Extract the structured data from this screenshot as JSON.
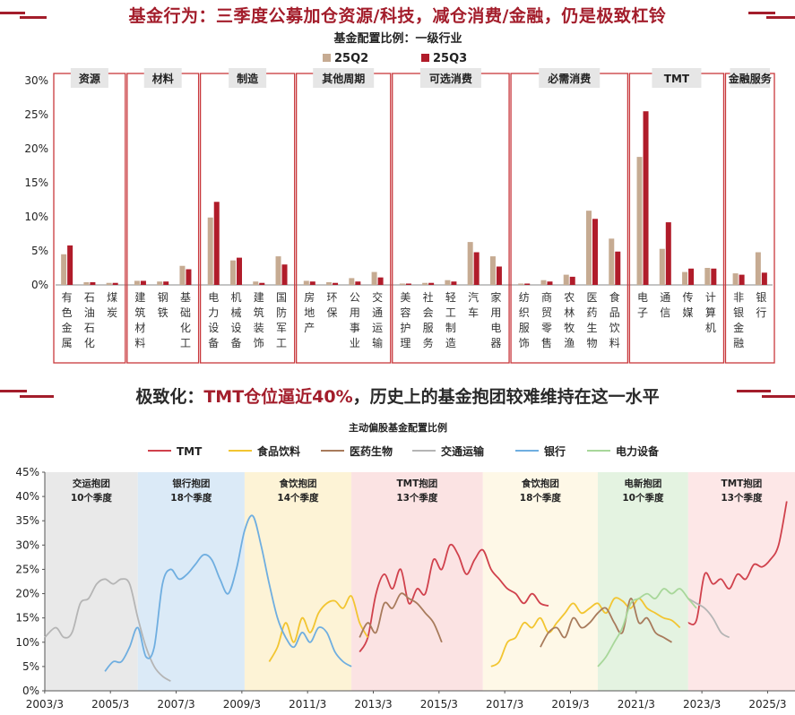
{
  "banner_top": "基金行为：三季度公募加仓资源/科技，减仓消费/金融，仍是极致杠铃",
  "banner_bottom": {
    "prefix": "极致化：",
    "highlight": "TMT仓位逼近40%",
    "suffix": "，历史上的基金抱团较难维持在这一水平"
  },
  "colors": {
    "brand": "#a31d2b",
    "q2": "#c6ab92",
    "q3": "#b01c2a",
    "tmt": "#d0414c",
    "food": "#f2c531",
    "pharma": "#a87b5c",
    "transport": "#b5b5b5",
    "bank": "#6faee0",
    "power": "#a8d79a"
  },
  "chart_data": [
    {
      "type": "bar",
      "title": "基金配置比例：一级行业",
      "series": [
        {
          "name": "25Q2",
          "values": [
            4.5,
            0.4,
            0.3,
            0.6,
            0.5,
            2.8,
            9.9,
            3.6,
            0.5,
            4.2,
            0.6,
            0.4,
            1.0,
            1.9,
            0.2,
            0.3,
            0.7,
            6.3,
            4.2,
            0.2,
            0.7,
            1.5,
            10.9,
            6.8,
            18.8,
            5.3,
            1.9,
            2.5,
            1.7,
            4.8
          ]
        },
        {
          "name": "25Q3",
          "values": [
            5.8,
            0.4,
            0.3,
            0.6,
            0.5,
            2.3,
            12.2,
            4.0,
            0.3,
            3.0,
            0.5,
            0.3,
            0.5,
            1.1,
            0.2,
            0.3,
            0.5,
            4.8,
            2.7,
            0.2,
            0.5,
            1.2,
            9.7,
            4.9,
            25.5,
            9.2,
            2.4,
            2.4,
            1.5,
            1.8
          ]
        }
      ],
      "categories": [
        "有色金属",
        "石油石化",
        "煤炭",
        "建筑材料",
        "钢铁",
        "基础化工",
        "电力设备",
        "机械设备",
        "建筑装饰",
        "国防军工",
        "房地产",
        "环保",
        "公用事业",
        "交通运输",
        "美容护理",
        "社会服务",
        "轻工制造",
        "汽车",
        "家用电器",
        "纺织服饰",
        "商贸零售",
        "农林牧渔",
        "医药生物",
        "食品饮料",
        "电子",
        "通信",
        "传媒",
        "计算机",
        "非银金融",
        "银行"
      ],
      "groups": [
        {
          "label": "资源",
          "start": 0,
          "end": 2
        },
        {
          "label": "材料",
          "start": 3,
          "end": 5
        },
        {
          "label": "制造",
          "start": 6,
          "end": 9
        },
        {
          "label": "其他周期",
          "start": 10,
          "end": 13
        },
        {
          "label": "可选消费",
          "start": 14,
          "end": 18
        },
        {
          "label": "必需消费",
          "start": 19,
          "end": 23
        },
        {
          "label": "TMT",
          "start": 24,
          "end": 27
        },
        {
          "label": "金融服务",
          "start": 28,
          "end": 29
        }
      ],
      "yticks": [
        "0%",
        "5%",
        "10%",
        "15%",
        "20%",
        "25%",
        "30%"
      ],
      "ylim": [
        0,
        30
      ],
      "legend": "top-center"
    },
    {
      "type": "line",
      "title": "主动偏股基金配置比例",
      "xticks": [
        "2003/3",
        "2005/3",
        "2007/3",
        "2009/3",
        "2011/3",
        "2013/3",
        "2015/3",
        "2017/3",
        "2019/3",
        "2021/3",
        "2023/3",
        "2025/3"
      ],
      "yticks": [
        "0%",
        "5%",
        "10%",
        "15%",
        "20%",
        "25%",
        "30%",
        "35%",
        "40%",
        "45%"
      ],
      "xlim": [
        2003.17,
        2026.0
      ],
      "ylim": [
        0,
        45
      ],
      "legend": "top",
      "regions": [
        {
          "from": 2003.17,
          "to": 2006.0,
          "color": "#e9e9e9",
          "line1": "交运抱团",
          "line2": "10个季度"
        },
        {
          "from": 2006.0,
          "to": 2009.25,
          "color": "#dbeaf7",
          "line1": "银行抱团",
          "line2": "18个季度"
        },
        {
          "from": 2009.25,
          "to": 2012.5,
          "color": "#fdf3d6",
          "line1": "食饮抱团",
          "line2": "14个季度"
        },
        {
          "from": 2012.5,
          "to": 2016.5,
          "color": "#fbe3e3",
          "line1": "TMT抱团",
          "line2": "13个季度"
        },
        {
          "from": 2016.5,
          "to": 2020.0,
          "color": "#fef8e7",
          "line1": "食饮抱团",
          "line2": "18个季度"
        },
        {
          "from": 2020.0,
          "to": 2022.75,
          "color": "#e4f3e1",
          "line1": "电新抱团",
          "line2": "10个季度"
        },
        {
          "from": 2022.75,
          "to": 2026.0,
          "color": "#fde7e7",
          "line1": "TMT抱团",
          "line2": "13个季度"
        }
      ],
      "series": [
        {
          "name": "TMT",
          "points": [
            [
              2012.75,
              8
            ],
            [
              2013.0,
              11
            ],
            [
              2013.25,
              20
            ],
            [
              2013.5,
              24
            ],
            [
              2013.75,
              21
            ],
            [
              2014.0,
              25
            ],
            [
              2014.25,
              18
            ],
            [
              2014.5,
              21
            ],
            [
              2014.75,
              20
            ],
            [
              2015.0,
              27
            ],
            [
              2015.25,
              25
            ],
            [
              2015.5,
              30
            ],
            [
              2015.75,
              28
            ],
            [
              2016.0,
              24
            ],
            [
              2016.25,
              27
            ],
            [
              2016.5,
              29
            ],
            [
              2016.75,
              25
            ],
            [
              2017.0,
              23
            ],
            [
              2017.25,
              21
            ],
            [
              2017.5,
              20
            ],
            [
              2017.75,
              18
            ],
            [
              2018.0,
              20
            ],
            [
              2018.25,
              18
            ],
            [
              2018.5,
              17.5
            ]
          ]
        },
        {
          "name": "TMT",
          "points": [
            [
              2022.75,
              14
            ],
            [
              2023.0,
              14.5
            ],
            [
              2023.25,
              24
            ],
            [
              2023.5,
              22
            ],
            [
              2023.75,
              23
            ],
            [
              2024.0,
              21
            ],
            [
              2024.25,
              24
            ],
            [
              2024.5,
              23
            ],
            [
              2024.75,
              26
            ],
            [
              2025.0,
              25.5
            ],
            [
              2025.25,
              27
            ],
            [
              2025.5,
              30
            ],
            [
              2025.75,
              39
            ]
          ]
        },
        {
          "name": "食品饮料",
          "points": [
            [
              2010.0,
              6
            ],
            [
              2010.25,
              9
            ],
            [
              2010.5,
              14
            ],
            [
              2010.75,
              10
            ],
            [
              2011.0,
              15
            ],
            [
              2011.25,
              12
            ],
            [
              2011.5,
              16
            ],
            [
              2011.75,
              18
            ],
            [
              2012.0,
              18.5
            ],
            [
              2012.25,
              17
            ],
            [
              2012.5,
              19.5
            ],
            [
              2012.75,
              14
            ],
            [
              2013.0,
              11
            ]
          ]
        },
        {
          "name": "食品饮料",
          "points": [
            [
              2016.75,
              5
            ],
            [
              2017.0,
              6
            ],
            [
              2017.25,
              10
            ],
            [
              2017.5,
              11
            ],
            [
              2017.75,
              14
            ],
            [
              2018.0,
              13
            ],
            [
              2018.25,
              15
            ],
            [
              2018.5,
              12
            ],
            [
              2018.75,
              14
            ],
            [
              2019.0,
              16
            ],
            [
              2019.25,
              18
            ],
            [
              2019.5,
              16
            ],
            [
              2019.75,
              17
            ],
            [
              2020.0,
              18
            ],
            [
              2020.25,
              16
            ],
            [
              2020.5,
              19
            ],
            [
              2020.75,
              18.5
            ],
            [
              2021.0,
              17
            ],
            [
              2021.25,
              19
            ],
            [
              2021.5,
              17
            ],
            [
              2021.75,
              16
            ],
            [
              2022.0,
              15
            ],
            [
              2022.25,
              14.5
            ],
            [
              2022.5,
              13
            ]
          ]
        },
        {
          "name": "医药生物",
          "points": [
            [
              2012.75,
              11
            ],
            [
              2013.0,
              14
            ],
            [
              2013.25,
              12
            ],
            [
              2013.5,
              18
            ],
            [
              2013.75,
              17
            ],
            [
              2014.0,
              20
            ],
            [
              2014.25,
              19
            ],
            [
              2014.5,
              18
            ],
            [
              2014.75,
              16
            ],
            [
              2015.0,
              14
            ],
            [
              2015.25,
              10
            ]
          ]
        },
        {
          "name": "医药生物",
          "points": [
            [
              2018.25,
              9
            ],
            [
              2018.5,
              12
            ],
            [
              2018.75,
              13
            ],
            [
              2019.0,
              11
            ],
            [
              2019.25,
              15
            ],
            [
              2019.5,
              13
            ],
            [
              2019.75,
              14
            ],
            [
              2020.0,
              16
            ],
            [
              2020.25,
              17
            ],
            [
              2020.5,
              14
            ],
            [
              2020.75,
              12
            ],
            [
              2021.0,
              19
            ],
            [
              2021.25,
              14
            ],
            [
              2021.5,
              15
            ],
            [
              2021.75,
              12
            ],
            [
              2022.0,
              11
            ],
            [
              2022.25,
              10
            ]
          ]
        },
        {
          "name": "交通运输",
          "points": [
            [
              2003.17,
              11
            ],
            [
              2003.5,
              13
            ],
            [
              2003.75,
              11
            ],
            [
              2004.0,
              12
            ],
            [
              2004.25,
              18
            ],
            [
              2004.5,
              19
            ],
            [
              2004.75,
              22
            ],
            [
              2005.0,
              23
            ],
            [
              2005.25,
              22
            ],
            [
              2005.5,
              23
            ],
            [
              2005.75,
              22
            ],
            [
              2006.0,
              15
            ],
            [
              2006.25,
              9
            ],
            [
              2006.5,
              5
            ],
            [
              2006.75,
              3
            ],
            [
              2007.0,
              2
            ]
          ]
        },
        {
          "name": "交通运输",
          "points": [
            [
              2022.75,
              19
            ],
            [
              2023.0,
              18
            ],
            [
              2023.25,
              17
            ],
            [
              2023.5,
              15
            ],
            [
              2023.75,
              12
            ],
            [
              2024.0,
              11
            ]
          ]
        },
        {
          "name": "银行",
          "points": [
            [
              2005.0,
              4
            ],
            [
              2005.25,
              6
            ],
            [
              2005.5,
              6
            ],
            [
              2005.75,
              9
            ],
            [
              2006.0,
              13
            ],
            [
              2006.25,
              7
            ],
            [
              2006.5,
              9
            ],
            [
              2006.75,
              22
            ],
            [
              2007.0,
              25
            ],
            [
              2007.25,
              23
            ],
            [
              2007.5,
              24
            ],
            [
              2007.75,
              26
            ],
            [
              2008.0,
              28
            ],
            [
              2008.25,
              27
            ],
            [
              2008.5,
              23
            ],
            [
              2008.75,
              20
            ],
            [
              2009.0,
              25
            ],
            [
              2009.25,
              33
            ],
            [
              2009.5,
              36
            ],
            [
              2009.75,
              30
            ],
            [
              2010.0,
              22
            ],
            [
              2010.25,
              15
            ],
            [
              2010.5,
              11
            ],
            [
              2010.75,
              9
            ],
            [
              2011.0,
              12
            ],
            [
              2011.25,
              10
            ],
            [
              2011.5,
              13
            ],
            [
              2011.75,
              12
            ],
            [
              2012.0,
              8
            ],
            [
              2012.25,
              6
            ],
            [
              2012.5,
              5
            ]
          ]
        },
        {
          "name": "电力设备",
          "points": [
            [
              2020.0,
              5
            ],
            [
              2020.25,
              7
            ],
            [
              2020.5,
              10
            ],
            [
              2020.75,
              13
            ],
            [
              2021.0,
              18
            ],
            [
              2021.25,
              19
            ],
            [
              2021.5,
              20
            ],
            [
              2021.75,
              19
            ],
            [
              2022.0,
              21
            ],
            [
              2022.25,
              20
            ],
            [
              2022.5,
              21
            ],
            [
              2022.75,
              19
            ],
            [
              2023.0,
              17
            ]
          ]
        }
      ]
    }
  ]
}
